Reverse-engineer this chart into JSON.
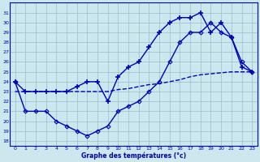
{
  "line1_diamond": {
    "x": [
      0,
      1,
      2,
      3,
      4,
      5,
      6,
      7,
      8,
      9,
      10,
      11,
      12,
      13,
      14,
      15,
      16,
      17,
      18,
      19,
      20,
      21,
      22,
      23
    ],
    "y": [
      24,
      21,
      21,
      21,
      20,
      19.5,
      19,
      18.5,
      19,
      19.5,
      21,
      21.5,
      22,
      23,
      24,
      26,
      28,
      29,
      29,
      30,
      29,
      28.5,
      26,
      25
    ],
    "color": "#0000bb",
    "marker": "D",
    "markersize": 2.5,
    "linewidth": 1.0
  },
  "line2_plus": {
    "x": [
      0,
      1,
      2,
      3,
      4,
      5,
      6,
      7,
      8,
      9,
      10,
      11,
      12,
      13,
      14,
      15,
      16,
      17,
      18,
      19,
      20,
      21,
      22,
      23
    ],
    "y": [
      24,
      23,
      23,
      23,
      23,
      23,
      23.5,
      24,
      24,
      22,
      24.5,
      25.5,
      26,
      27.5,
      29,
      30,
      30.5,
      30.5,
      31,
      29,
      30,
      28.5,
      25.5,
      25
    ],
    "color": "#0000bb",
    "marker": "+",
    "markersize": 4,
    "linewidth": 1.0
  },
  "line3_dash": {
    "x": [
      0,
      1,
      2,
      3,
      4,
      5,
      6,
      7,
      8,
      9,
      10,
      11,
      12,
      13,
      14,
      15,
      16,
      17,
      18,
      19,
      20,
      21,
      22,
      23
    ],
    "y": [
      23,
      23,
      23,
      23,
      23,
      23,
      23,
      23,
      23,
      23,
      23.2,
      23.3,
      23.5,
      23.7,
      23.8,
      24,
      24.2,
      24.5,
      24.7,
      24.8,
      24.9,
      25,
      25,
      25
    ],
    "color": "#0000bb",
    "marker": null,
    "linewidth": 1.0,
    "linestyle": "--"
  },
  "xlim": [
    -0.5,
    23.5
  ],
  "ylim": [
    17.5,
    32
  ],
  "yticks": [
    18,
    19,
    20,
    21,
    22,
    23,
    24,
    25,
    26,
    27,
    28,
    29,
    30,
    31
  ],
  "xticks": [
    0,
    1,
    2,
    3,
    4,
    5,
    6,
    7,
    8,
    9,
    10,
    11,
    12,
    13,
    14,
    15,
    16,
    17,
    18,
    19,
    20,
    21,
    22,
    23
  ],
  "xlabel": "Graphe des températures (°c)",
  "bg_color": "#cce8ee",
  "grid_color": "#99bbcc",
  "axis_color": "#0000aa",
  "label_color": "#0000aa",
  "figsize": [
    3.2,
    2.0
  ],
  "dpi": 100
}
